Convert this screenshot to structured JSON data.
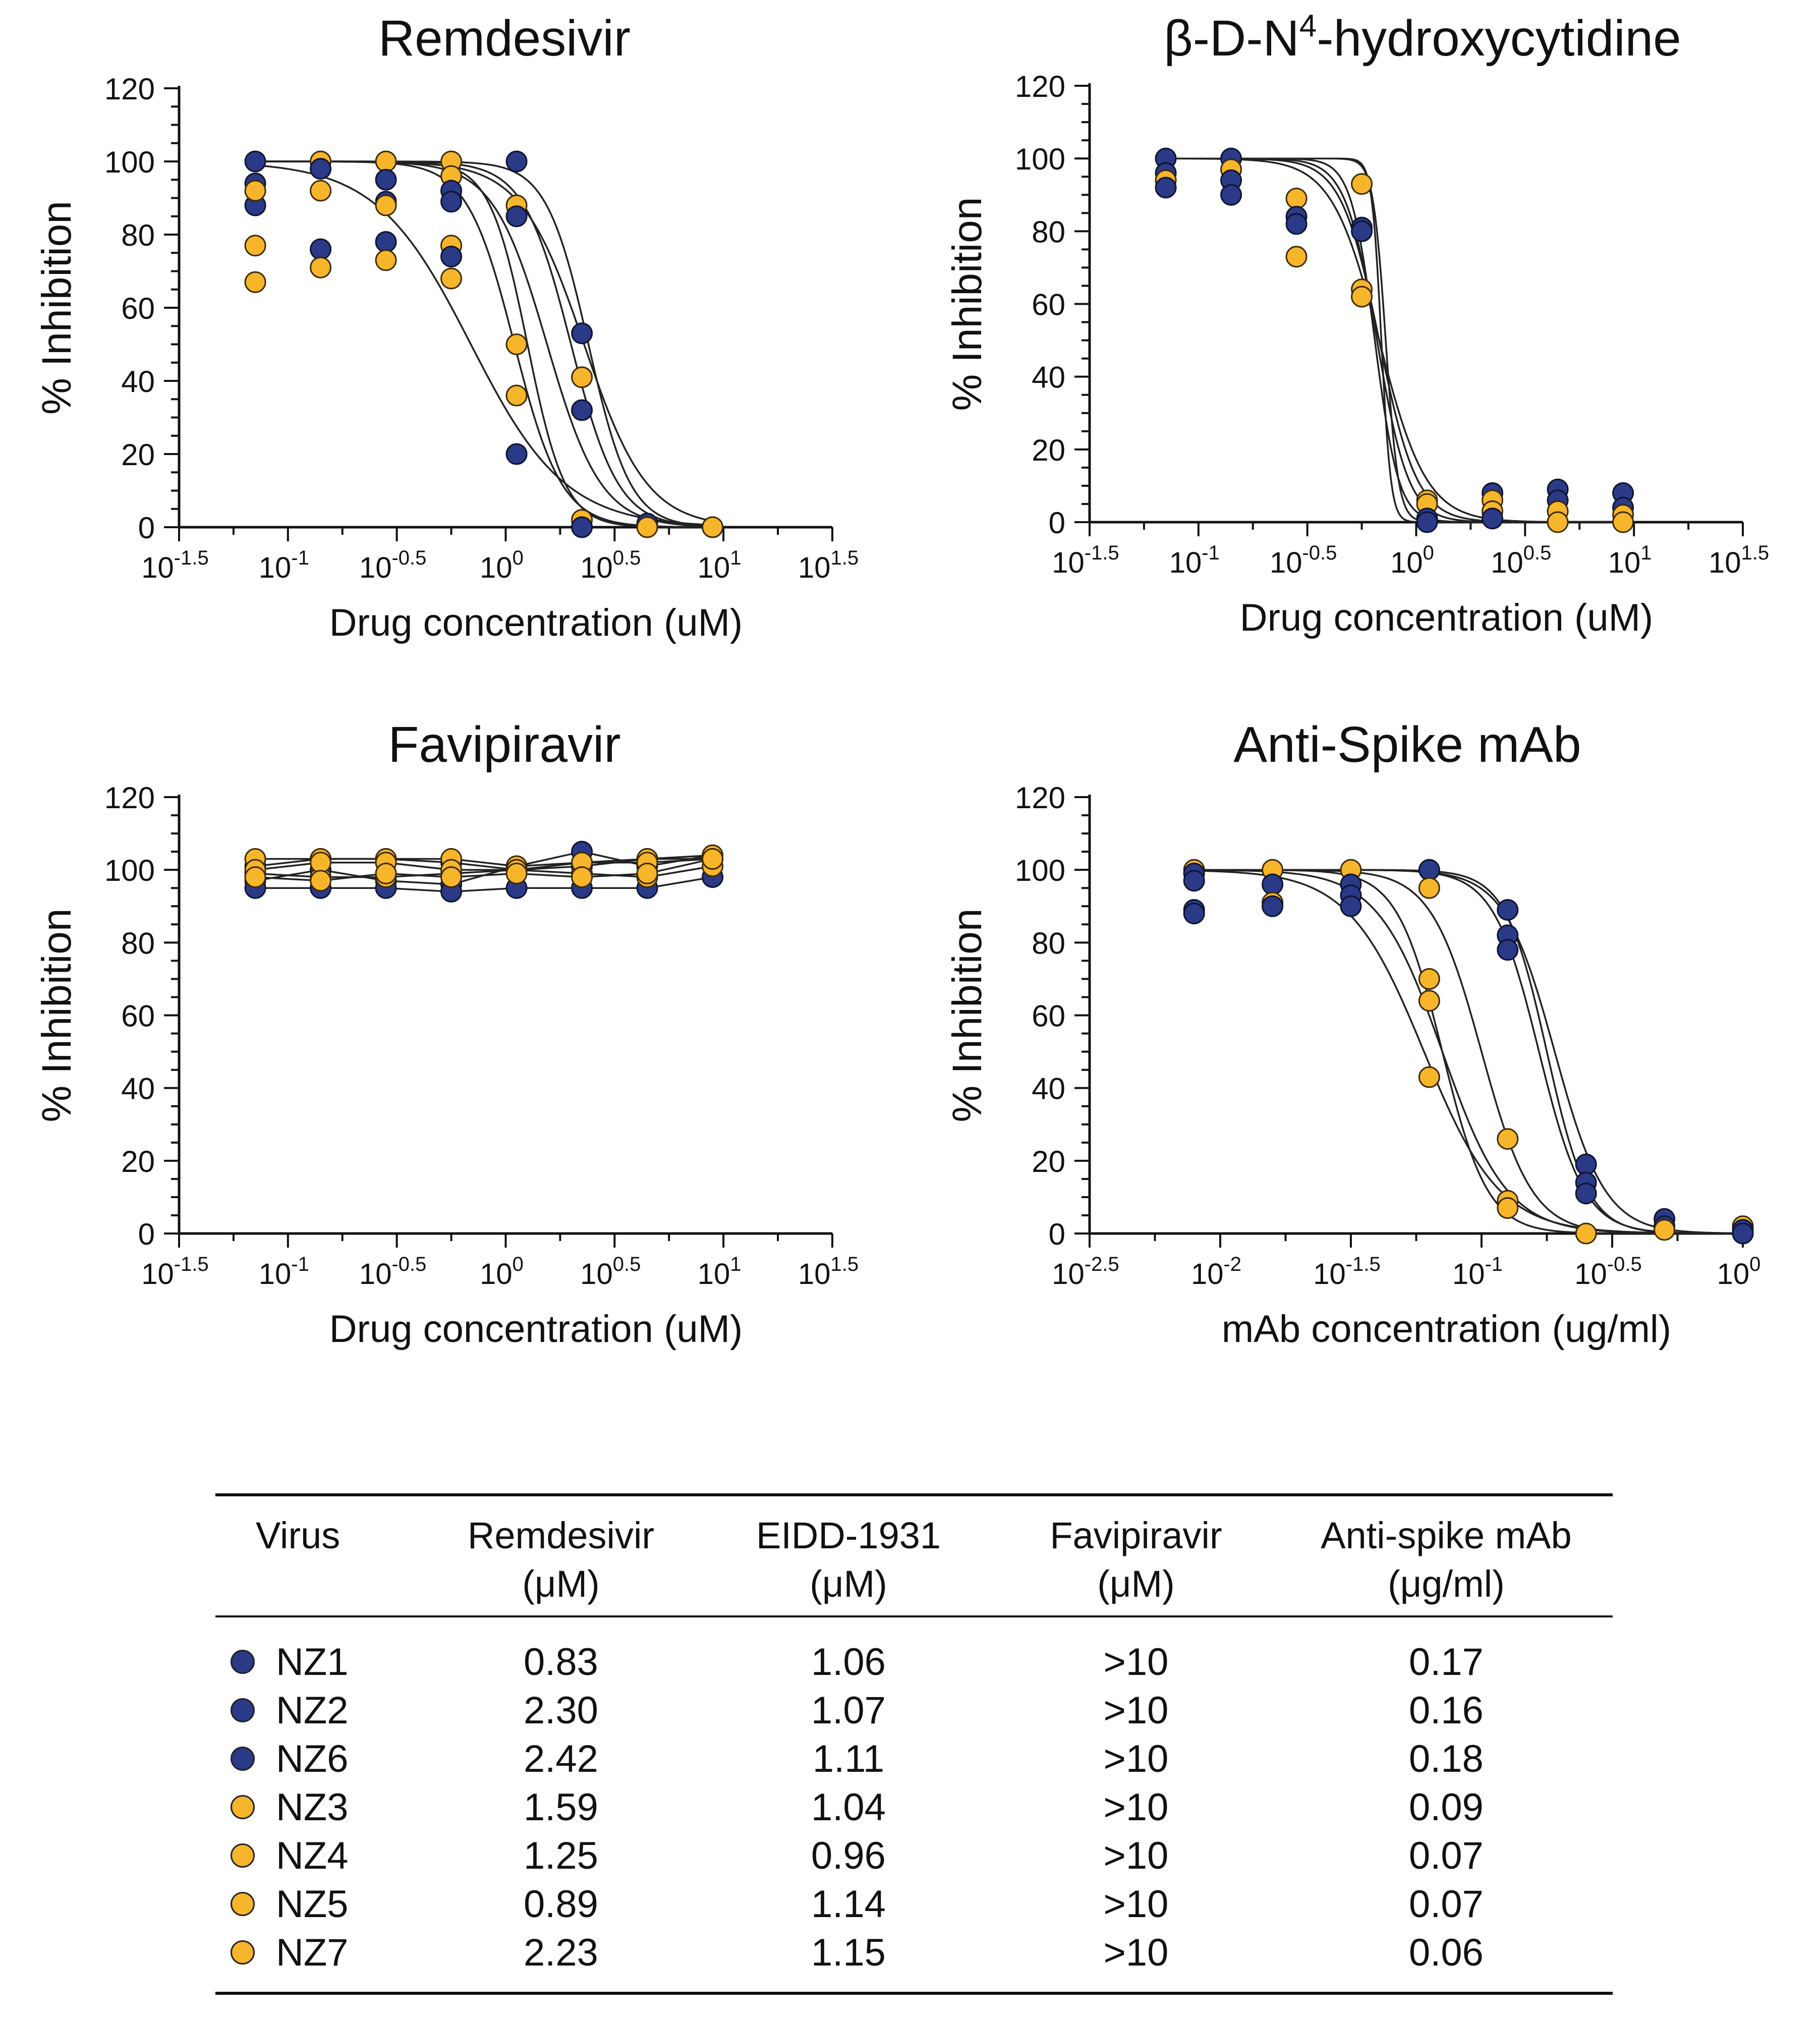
{
  "colors": {
    "group_blue": "#2b3a86",
    "group_gold": "#f7b52b",
    "curve": "#222222"
  },
  "chart_data": [
    {
      "type": "scatter",
      "title": "Remdesivir",
      "xlabel": "Drug concentration (uM)",
      "ylabel": "% Inhibition",
      "x_scale": "log10",
      "xlim": [
        -1.5,
        1.5
      ],
      "ylim": [
        0,
        120
      ],
      "xticks": [
        {
          "base": "10",
          "exp": "-1.5"
        },
        {
          "base": "10",
          "exp": "-1"
        },
        {
          "base": "10",
          "exp": "-0.5"
        },
        {
          "base": "10",
          "exp": "0"
        },
        {
          "base": "10",
          "exp": "0.5"
        },
        {
          "base": "10",
          "exp": "1"
        },
        {
          "base": "10",
          "exp": "1.5"
        }
      ],
      "yticks": [
        "0",
        "20",
        "40",
        "60",
        "80",
        "100",
        "120"
      ],
      "points": [
        {
          "x": -1.15,
          "y": 100,
          "g": "blue"
        },
        {
          "x": -1.15,
          "y": 94,
          "g": "blue"
        },
        {
          "x": -1.15,
          "y": 88,
          "g": "blue"
        },
        {
          "x": -1.15,
          "y": 92,
          "g": "gold"
        },
        {
          "x": -1.15,
          "y": 77,
          "g": "gold"
        },
        {
          "x": -1.15,
          "y": 67,
          "g": "gold"
        },
        {
          "x": -0.85,
          "y": 100,
          "g": "gold"
        },
        {
          "x": -0.85,
          "y": 98,
          "g": "blue"
        },
        {
          "x": -0.85,
          "y": 92,
          "g": "gold"
        },
        {
          "x": -0.85,
          "y": 76,
          "g": "blue"
        },
        {
          "x": -0.85,
          "y": 71,
          "g": "gold"
        },
        {
          "x": -0.55,
          "y": 100,
          "g": "gold"
        },
        {
          "x": -0.55,
          "y": 95,
          "g": "blue"
        },
        {
          "x": -0.55,
          "y": 89,
          "g": "blue"
        },
        {
          "x": -0.55,
          "y": 88,
          "g": "gold"
        },
        {
          "x": -0.55,
          "y": 78,
          "g": "blue"
        },
        {
          "x": -0.55,
          "y": 73,
          "g": "gold"
        },
        {
          "x": -0.25,
          "y": 100,
          "g": "gold"
        },
        {
          "x": -0.25,
          "y": 96,
          "g": "gold"
        },
        {
          "x": -0.25,
          "y": 92,
          "g": "blue"
        },
        {
          "x": -0.25,
          "y": 89,
          "g": "blue"
        },
        {
          "x": -0.25,
          "y": 77,
          "g": "gold"
        },
        {
          "x": -0.25,
          "y": 74,
          "g": "blue"
        },
        {
          "x": -0.25,
          "y": 68,
          "g": "gold"
        },
        {
          "x": 0.05,
          "y": 100,
          "g": "blue"
        },
        {
          "x": 0.05,
          "y": 88,
          "g": "gold"
        },
        {
          "x": 0.05,
          "y": 85,
          "g": "blue"
        },
        {
          "x": 0.05,
          "y": 50,
          "g": "gold"
        },
        {
          "x": 0.05,
          "y": 36,
          "g": "gold"
        },
        {
          "x": 0.05,
          "y": 20,
          "g": "blue"
        },
        {
          "x": 0.35,
          "y": 53,
          "g": "blue"
        },
        {
          "x": 0.35,
          "y": 41,
          "g": "gold"
        },
        {
          "x": 0.35,
          "y": 32,
          "g": "blue"
        },
        {
          "x": 0.35,
          "y": 2,
          "g": "gold"
        },
        {
          "x": 0.35,
          "y": 0,
          "g": "blue"
        },
        {
          "x": 0.65,
          "y": 1,
          "g": "blue"
        },
        {
          "x": 0.65,
          "y": 0,
          "g": "gold"
        },
        {
          "x": 0.95,
          "y": 0,
          "g": "blue"
        },
        {
          "x": 0.95,
          "y": 0,
          "g": "gold"
        }
      ],
      "curves": [
        {
          "logEC50": -0.16,
          "hill": 2.0
        },
        {
          "logEC50": 0.04,
          "hill": 4.0
        },
        {
          "logEC50": 0.1,
          "hill": 5.0
        },
        {
          "logEC50": 0.19,
          "hill": 3.5
        },
        {
          "logEC50": 0.3,
          "hill": 4.0
        },
        {
          "logEC50": 0.36,
          "hill": 3.0
        },
        {
          "logEC50": 0.38,
          "hill": 4.5
        }
      ]
    },
    {
      "type": "scatter",
      "title": "β-D-N⁴-hydroxycytidine",
      "xlabel": "Drug concentration (uM)",
      "ylabel": "% Inhibition",
      "x_scale": "log10",
      "xlim": [
        -1.5,
        1.5
      ],
      "ylim": [
        0,
        120
      ],
      "xticks": [
        {
          "base": "10",
          "exp": "-1.5"
        },
        {
          "base": "10",
          "exp": "-1"
        },
        {
          "base": "10",
          "exp": "-0.5"
        },
        {
          "base": "10",
          "exp": "0"
        },
        {
          "base": "10",
          "exp": "0.5"
        },
        {
          "base": "10",
          "exp": "1"
        },
        {
          "base": "10",
          "exp": "1.5"
        }
      ],
      "yticks": [
        "0",
        "20",
        "40",
        "60",
        "80",
        "100",
        "120"
      ],
      "points": [
        {
          "x": -1.15,
          "y": 100,
          "g": "blue"
        },
        {
          "x": -1.15,
          "y": 96,
          "g": "blue"
        },
        {
          "x": -1.15,
          "y": 94,
          "g": "gold"
        },
        {
          "x": -1.15,
          "y": 92,
          "g": "blue"
        },
        {
          "x": -0.85,
          "y": 100,
          "g": "blue"
        },
        {
          "x": -0.85,
          "y": 97,
          "g": "gold"
        },
        {
          "x": -0.85,
          "y": 94,
          "g": "blue"
        },
        {
          "x": -0.85,
          "y": 90,
          "g": "blue"
        },
        {
          "x": -0.55,
          "y": 89,
          "g": "gold"
        },
        {
          "x": -0.55,
          "y": 84,
          "g": "blue"
        },
        {
          "x": -0.55,
          "y": 82,
          "g": "blue"
        },
        {
          "x": -0.55,
          "y": 73,
          "g": "gold"
        },
        {
          "x": -0.25,
          "y": 93,
          "g": "gold"
        },
        {
          "x": -0.25,
          "y": 81,
          "g": "blue"
        },
        {
          "x": -0.25,
          "y": 80,
          "g": "blue"
        },
        {
          "x": -0.25,
          "y": 64,
          "g": "gold"
        },
        {
          "x": -0.25,
          "y": 62,
          "g": "gold"
        },
        {
          "x": 0.05,
          "y": 6,
          "g": "gold"
        },
        {
          "x": 0.05,
          "y": 5,
          "g": "gold"
        },
        {
          "x": 0.05,
          "y": 1,
          "g": "blue"
        },
        {
          "x": 0.05,
          "y": 0,
          "g": "blue"
        },
        {
          "x": 0.35,
          "y": 8,
          "g": "blue"
        },
        {
          "x": 0.35,
          "y": 6,
          "g": "gold"
        },
        {
          "x": 0.35,
          "y": 3,
          "g": "gold"
        },
        {
          "x": 0.35,
          "y": 1,
          "g": "blue"
        },
        {
          "x": 0.65,
          "y": 9,
          "g": "blue"
        },
        {
          "x": 0.65,
          "y": 6,
          "g": "blue"
        },
        {
          "x": 0.65,
          "y": 3,
          "g": "gold"
        },
        {
          "x": 0.65,
          "y": 0,
          "g": "gold"
        },
        {
          "x": 0.95,
          "y": 8,
          "g": "blue"
        },
        {
          "x": 0.95,
          "y": 4,
          "g": "blue"
        },
        {
          "x": 0.95,
          "y": 2,
          "g": "gold"
        },
        {
          "x": 0.95,
          "y": 0,
          "g": "gold"
        }
      ],
      "curves": [
        {
          "logEC50": -0.17,
          "hill": 4.0
        },
        {
          "logEC50": -0.17,
          "hill": 5.0
        },
        {
          "logEC50": -0.18,
          "hill": 6.0
        },
        {
          "logEC50": -0.19,
          "hill": 8.0
        },
        {
          "logEC50": -0.14,
          "hill": 15.0
        },
        {
          "logEC50": -0.16,
          "hill": 20.0
        }
      ]
    },
    {
      "type": "line",
      "title": "Favipiravir",
      "xlabel": "Drug concentration (uM)",
      "ylabel": "% Inhibition",
      "x_scale": "log10",
      "xlim": [
        -1.5,
        1.5
      ],
      "ylim": [
        0,
        120
      ],
      "xticks": [
        {
          "base": "10",
          "exp": "-1.5"
        },
        {
          "base": "10",
          "exp": "-1"
        },
        {
          "base": "10",
          "exp": "-0.5"
        },
        {
          "base": "10",
          "exp": "0"
        },
        {
          "base": "10",
          "exp": "0.5"
        },
        {
          "base": "10",
          "exp": "1"
        },
        {
          "base": "10",
          "exp": "1.5"
        }
      ],
      "yticks": [
        "0",
        "20",
        "40",
        "60",
        "80",
        "100",
        "120"
      ],
      "x": [
        -1.15,
        -0.85,
        -0.55,
        -0.25,
        0.05,
        0.35,
        0.65,
        0.95
      ],
      "series": [
        {
          "name": "NZ1",
          "g": "blue",
          "values": [
            97,
            100,
            97,
            96,
            101,
            105,
            101,
            104
          ]
        },
        {
          "name": "NZ2",
          "g": "blue",
          "values": [
            95,
            95,
            95,
            94,
            95,
            95,
            95,
            98
          ]
        },
        {
          "name": "NZ6",
          "g": "blue",
          "values": [
            101,
            103,
            103,
            102,
            100,
            101,
            103,
            103
          ]
        },
        {
          "name": "NZ3",
          "g": "gold",
          "values": [
            103,
            103,
            103,
            103,
            101,
            102,
            103,
            104
          ]
        },
        {
          "name": "NZ4",
          "g": "gold",
          "values": [
            99,
            98,
            98,
            99,
            100,
            99,
            98,
            101
          ]
        },
        {
          "name": "NZ5",
          "g": "gold",
          "values": [
            100,
            102,
            102,
            100,
            100,
            102,
            102,
            103
          ]
        },
        {
          "name": "NZ7",
          "g": "gold",
          "values": [
            98,
            97,
            99,
            98,
            99,
            98,
            99,
            103
          ]
        }
      ]
    },
    {
      "type": "scatter",
      "title": "Anti-Spike mAb",
      "xlabel": "mAb concentration (ug/ml)",
      "ylabel": "% Inhibition",
      "x_scale": "log10",
      "xlim": [
        -2.5,
        0
      ],
      "ylim": [
        0,
        120
      ],
      "xticks": [
        {
          "base": "10",
          "exp": "-2.5"
        },
        {
          "base": "10",
          "exp": "-2"
        },
        {
          "base": "10",
          "exp": "-1.5"
        },
        {
          "base": "10",
          "exp": "-1"
        },
        {
          "base": "10",
          "exp": "-0.5"
        },
        {
          "base": "10",
          "exp": "0"
        }
      ],
      "yticks": [
        "0",
        "20",
        "40",
        "60",
        "80",
        "100",
        "120"
      ],
      "points": [
        {
          "x": -2.1,
          "y": 100,
          "g": "gold"
        },
        {
          "x": -2.1,
          "y": 99,
          "g": "blue"
        },
        {
          "x": -2.1,
          "y": 97,
          "g": "blue"
        },
        {
          "x": -2.1,
          "y": 89,
          "g": "blue"
        },
        {
          "x": -2.1,
          "y": 88,
          "g": "blue"
        },
        {
          "x": -1.8,
          "y": 100,
          "g": "gold"
        },
        {
          "x": -1.8,
          "y": 96,
          "g": "blue"
        },
        {
          "x": -1.8,
          "y": 91,
          "g": "gold"
        },
        {
          "x": -1.8,
          "y": 90,
          "g": "blue"
        },
        {
          "x": -1.5,
          "y": 100,
          "g": "gold"
        },
        {
          "x": -1.5,
          "y": 96,
          "g": "blue"
        },
        {
          "x": -1.5,
          "y": 93,
          "g": "blue"
        },
        {
          "x": -1.5,
          "y": 90,
          "g": "blue"
        },
        {
          "x": -1.2,
          "y": 100,
          "g": "blue"
        },
        {
          "x": -1.2,
          "y": 95,
          "g": "gold"
        },
        {
          "x": -1.2,
          "y": 70,
          "g": "gold"
        },
        {
          "x": -1.2,
          "y": 64,
          "g": "gold"
        },
        {
          "x": -1.2,
          "y": 43,
          "g": "gold"
        },
        {
          "x": -0.9,
          "y": 89,
          "g": "blue"
        },
        {
          "x": -0.9,
          "y": 82,
          "g": "blue"
        },
        {
          "x": -0.9,
          "y": 78,
          "g": "blue"
        },
        {
          "x": -0.9,
          "y": 26,
          "g": "gold"
        },
        {
          "x": -0.9,
          "y": 9,
          "g": "gold"
        },
        {
          "x": -0.9,
          "y": 7,
          "g": "gold"
        },
        {
          "x": -0.6,
          "y": 19,
          "g": "blue"
        },
        {
          "x": -0.6,
          "y": 14,
          "g": "blue"
        },
        {
          "x": -0.6,
          "y": 11,
          "g": "blue"
        },
        {
          "x": -0.6,
          "y": 0,
          "g": "gold"
        },
        {
          "x": -0.3,
          "y": 4,
          "g": "blue"
        },
        {
          "x": -0.3,
          "y": 2,
          "g": "blue"
        },
        {
          "x": -0.3,
          "y": 1,
          "g": "gold"
        },
        {
          "x": 0,
          "y": 2,
          "g": "gold"
        },
        {
          "x": 0,
          "y": 1,
          "g": "blue"
        },
        {
          "x": 0,
          "y": 0,
          "g": "blue"
        }
      ],
      "curves": [
        {
          "logEC50": -1.22,
          "hill": 3.0
        },
        {
          "logEC50": -1.15,
          "hill": 3.5
        },
        {
          "logEC50": -1.15,
          "hill": 5.0
        },
        {
          "logEC50": -1.0,
          "hill": 4.5
        },
        {
          "logEC50": -0.78,
          "hill": 5.0
        },
        {
          "logEC50": -0.75,
          "hill": 5.5
        },
        {
          "logEC50": -0.72,
          "hill": 4.5
        }
      ]
    }
  ],
  "table": {
    "headers": [
      {
        "line1": "Virus",
        "line2": ""
      },
      {
        "line1": "Remdesivir",
        "line2": "(μM)"
      },
      {
        "line1": "EIDD-1931",
        "line2": "(μM)"
      },
      {
        "line1": "Favipiravir",
        "line2": "(μM)"
      },
      {
        "line1": "Anti-spike mAb",
        "line2": "(μg/ml)"
      }
    ],
    "rows": [
      {
        "virus": "NZ1",
        "group": "blue",
        "remdesivir": "0.83",
        "eidd": "1.06",
        "favipiravir": ">10",
        "mab": "0.17"
      },
      {
        "virus": "NZ2",
        "group": "blue",
        "remdesivir": "2.30",
        "eidd": "1.07",
        "favipiravir": ">10",
        "mab": "0.16"
      },
      {
        "virus": "NZ6",
        "group": "blue",
        "remdesivir": "2.42",
        "eidd": "1.11",
        "favipiravir": ">10",
        "mab": "0.18"
      },
      {
        "virus": "NZ3",
        "group": "gold",
        "remdesivir": "1.59",
        "eidd": "1.04",
        "favipiravir": ">10",
        "mab": "0.09"
      },
      {
        "virus": "NZ4",
        "group": "gold",
        "remdesivir": "1.25",
        "eidd": "0.96",
        "favipiravir": ">10",
        "mab": "0.07"
      },
      {
        "virus": "NZ5",
        "group": "gold",
        "remdesivir": "0.89",
        "eidd": "1.14",
        "favipiravir": ">10",
        "mab": "0.07"
      },
      {
        "virus": "NZ7",
        "group": "gold",
        "remdesivir": "2.23",
        "eidd": "1.15",
        "favipiravir": ">10",
        "mab": "0.06"
      }
    ]
  }
}
